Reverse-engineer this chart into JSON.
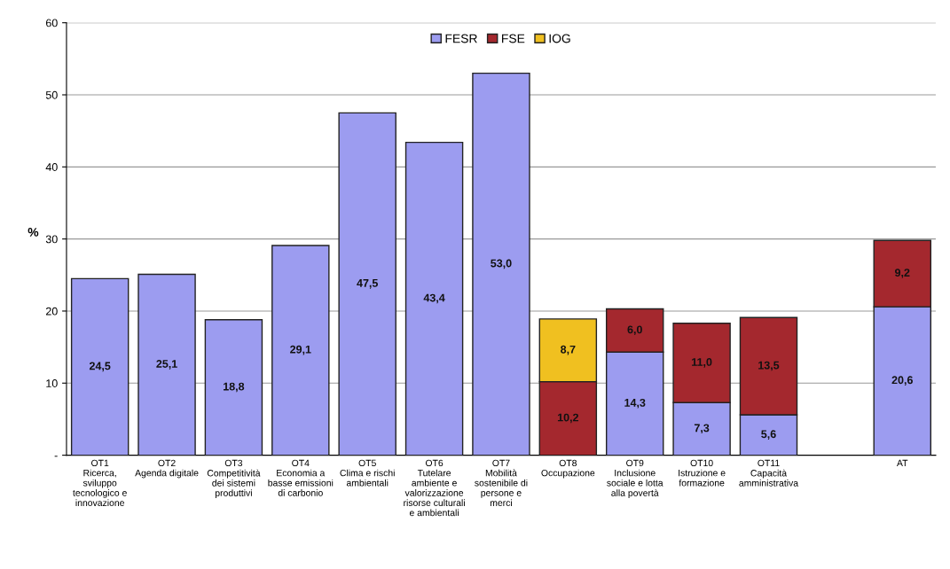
{
  "chart_data": {
    "type": "bar",
    "stacked": true,
    "ylabel": "%",
    "categories": [
      "OT1\nRicerca,\nsviluppo\ntecnologico e\ninnovazione",
      "OT2\nAgenda digitale",
      "OT3\nCompetitività\ndei sistemi\nproduttivi",
      "OT4\nEconomia a\nbasse emissioni\ndi carbonio",
      "OT5\nClima e rischi\nambientali",
      "OT6\nTutelare\nambiente e\nvalorizzazione\nrisorse culturali\ne ambientali",
      "OT7\nMobilità\nsostenibile di\npersone e\nmerci",
      "OT8\nOccupazione",
      "OT9\nInclusione\nsociale e lotta\nalla povertà",
      "OT10\nIstruzione e\nformazione",
      "OT11\nCapacità\namministrativa",
      null,
      "AT"
    ],
    "series": [
      {
        "name": "FESR",
        "color": "#9c9cf0",
        "values": [
          24.5,
          25.1,
          18.8,
          29.1,
          47.5,
          43.4,
          53.0,
          null,
          14.3,
          7.3,
          5.6,
          null,
          20.6
        ],
        "value_labels": [
          "24,5",
          "25,1",
          "18,8",
          "29,1",
          "47,5",
          "43,4",
          "53,0",
          null,
          "14,3",
          "7,3",
          "5,6",
          null,
          "20,6"
        ]
      },
      {
        "name": "FSE",
        "color": "#a4282e",
        "values": [
          null,
          null,
          null,
          null,
          null,
          null,
          null,
          10.2,
          6.0,
          11.0,
          13.5,
          null,
          9.2
        ],
        "value_labels": [
          null,
          null,
          null,
          null,
          null,
          null,
          null,
          "10,2",
          "6,0",
          "11,0",
          "13,5",
          null,
          "9,2"
        ]
      },
      {
        "name": "IOG",
        "color": "#f0c020",
        "values": [
          null,
          null,
          null,
          null,
          null,
          null,
          null,
          8.7,
          null,
          null,
          null,
          null,
          null
        ],
        "value_labels": [
          null,
          null,
          null,
          null,
          null,
          null,
          null,
          "8,7",
          null,
          null,
          null,
          null,
          null
        ]
      }
    ],
    "ylim": [
      0,
      60
    ],
    "yticks": [
      {
        "value": 0,
        "label": "-"
      },
      10,
      20,
      30,
      40,
      50,
      60
    ],
    "grid": "y",
    "legend": "top"
  }
}
